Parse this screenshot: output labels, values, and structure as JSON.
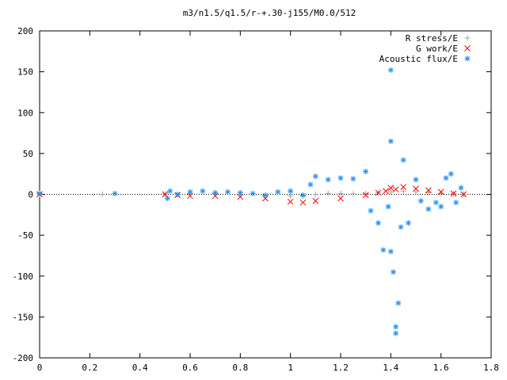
{
  "chart_data": {
    "type": "scatter",
    "title": "m3/n1.5/q1.5/r-+.30-j155/M0.0/512",
    "xlabel": "",
    "ylabel": "",
    "xlim": [
      0,
      1.8
    ],
    "ylim": [
      -200,
      200
    ],
    "x_ticks": [
      "0",
      "0.2",
      "0.4",
      "0.6",
      "0.8",
      "1",
      "1.2",
      "1.4",
      "1.6",
      "1.8"
    ],
    "y_ticks": [
      "200",
      "150",
      "100",
      "50",
      "0",
      "-50",
      "-100",
      "-150",
      "-200"
    ],
    "grid": false,
    "legend_position": "top-right",
    "series": [
      {
        "name": "R stress/E",
        "marker": "+",
        "color": "#a0a0a0",
        "points": [
          [
            0.0,
            0
          ],
          [
            0.25,
            0
          ],
          [
            0.5,
            0.5
          ],
          [
            0.6,
            1
          ],
          [
            0.7,
            0.5
          ],
          [
            0.8,
            0
          ],
          [
            0.9,
            -1
          ],
          [
            1.0,
            -2
          ],
          [
            1.05,
            -2
          ],
          [
            1.1,
            0
          ],
          [
            1.15,
            1
          ],
          [
            1.2,
            1
          ],
          [
            1.25,
            0.5
          ],
          [
            1.3,
            1
          ],
          [
            1.35,
            2
          ],
          [
            1.4,
            3
          ],
          [
            1.45,
            4
          ],
          [
            1.5,
            3
          ],
          [
            1.55,
            2
          ],
          [
            1.6,
            1
          ],
          [
            1.65,
            1
          ],
          [
            1.69,
            0
          ]
        ]
      },
      {
        "name": "G work/E",
        "marker": "x",
        "color": "#ff0000",
        "points": [
          [
            0.0,
            0
          ],
          [
            0.5,
            0
          ],
          [
            0.55,
            -1
          ],
          [
            0.6,
            -2
          ],
          [
            0.7,
            -2
          ],
          [
            0.8,
            -3
          ],
          [
            0.9,
            -5
          ],
          [
            1.0,
            -9
          ],
          [
            1.05,
            -10
          ],
          [
            1.1,
            -8
          ],
          [
            1.2,
            -5
          ],
          [
            1.3,
            -1
          ],
          [
            1.35,
            2
          ],
          [
            1.38,
            4
          ],
          [
            1.4,
            8
          ],
          [
            1.42,
            6
          ],
          [
            1.45,
            9
          ],
          [
            1.5,
            7
          ],
          [
            1.55,
            5
          ],
          [
            1.6,
            3
          ],
          [
            1.65,
            1
          ],
          [
            1.69,
            0
          ]
        ]
      },
      {
        "name": "Acoustic flux/E",
        "marker": "*",
        "color": "#1e90ff",
        "points": [
          [
            0.0,
            1
          ],
          [
            0.3,
            1
          ],
          [
            0.51,
            -5
          ],
          [
            0.52,
            4
          ],
          [
            0.55,
            0
          ],
          [
            0.6,
            3
          ],
          [
            0.65,
            4
          ],
          [
            0.7,
            2
          ],
          [
            0.75,
            3
          ],
          [
            0.8,
            2
          ],
          [
            0.85,
            1
          ],
          [
            0.9,
            -1
          ],
          [
            0.95,
            3
          ],
          [
            1.0,
            4
          ],
          [
            1.05,
            -1
          ],
          [
            1.08,
            12
          ],
          [
            1.1,
            22
          ],
          [
            1.15,
            18
          ],
          [
            1.2,
            20
          ],
          [
            1.25,
            19
          ],
          [
            1.3,
            28
          ],
          [
            1.32,
            -20
          ],
          [
            1.35,
            -35
          ],
          [
            1.37,
            -68
          ],
          [
            1.39,
            -15
          ],
          [
            1.4,
            152
          ],
          [
            1.4,
            65
          ],
          [
            1.4,
            -70
          ],
          [
            1.41,
            -95
          ],
          [
            1.42,
            -162
          ],
          [
            1.42,
            -170
          ],
          [
            1.43,
            -133
          ],
          [
            1.44,
            -40
          ],
          [
            1.45,
            42
          ],
          [
            1.47,
            -35
          ],
          [
            1.5,
            18
          ],
          [
            1.52,
            -8
          ],
          [
            1.55,
            -18
          ],
          [
            1.58,
            -10
          ],
          [
            1.6,
            -15
          ],
          [
            1.62,
            20
          ],
          [
            1.64,
            25
          ],
          [
            1.66,
            -10
          ],
          [
            1.68,
            8
          ]
        ]
      }
    ]
  }
}
